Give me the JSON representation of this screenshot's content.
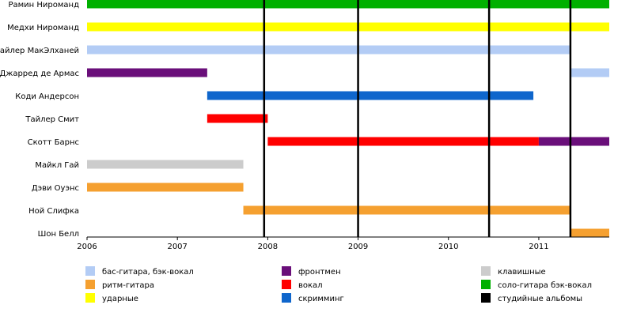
{
  "chart_data": {
    "type": "timeline",
    "x_range": [
      2006.0,
      2011.78
    ],
    "x_ticks": [
      "2006",
      "2007",
      "2008",
      "2009",
      "2010",
      "2011"
    ],
    "members": [
      {
        "name": "Рамин Ниромaнд",
        "bars": [
          {
            "start": 2006.0,
            "end": 2011.78,
            "role": "lead"
          }
        ]
      },
      {
        "name": "Медхи Ниромaнд",
        "bars": [
          {
            "start": 2006.0,
            "end": 2011.78,
            "role": "drums"
          }
        ]
      },
      {
        "name": "Тайлер МакЭлханей",
        "bars": [
          {
            "start": 2006.0,
            "end": 2011.35,
            "role": "bass"
          }
        ]
      },
      {
        "name": "Джарред де Армас",
        "bars": [
          {
            "start": 2006.0,
            "end": 2007.33,
            "role": "front"
          },
          {
            "start": 2011.35,
            "end": 2011.78,
            "role": "bass"
          }
        ]
      },
      {
        "name": "Коди Андерсон",
        "bars": [
          {
            "start": 2007.33,
            "end": 2010.94,
            "role": "scream"
          }
        ]
      },
      {
        "name": "Тайлер Смит",
        "bars": [
          {
            "start": 2007.33,
            "end": 2008.0,
            "role": "vocal"
          }
        ]
      },
      {
        "name": "Скотт Барнс",
        "bars": [
          {
            "start": 2008.0,
            "end": 2011.0,
            "role": "vocal"
          },
          {
            "start": 2011.0,
            "end": 2011.78,
            "role": "front"
          }
        ]
      },
      {
        "name": "Майкл Гай",
        "bars": [
          {
            "start": 2006.0,
            "end": 2007.73,
            "role": "keys"
          }
        ]
      },
      {
        "name": "Дэви Оуэнс",
        "bars": [
          {
            "start": 2006.0,
            "end": 2007.73,
            "role": "rhythm"
          }
        ]
      },
      {
        "name": "Ной Слифка",
        "bars": [
          {
            "start": 2007.73,
            "end": 2011.35,
            "role": "rhythm"
          }
        ]
      },
      {
        "name": "Шон Белл",
        "bars": [
          {
            "start": 2011.35,
            "end": 2011.78,
            "role": "rhythm"
          }
        ]
      }
    ],
    "album_lines": [
      2007.96,
      2009.0,
      2010.45,
      2011.35
    ],
    "roles": {
      "bass": {
        "label": "бас-гитара, бэк-вокал",
        "color": "#b3ccf5"
      },
      "rhythm": {
        "label": "ритм-гитара",
        "color": "#f5a030"
      },
      "drums": {
        "label": "ударные",
        "color": "#ffff00"
      },
      "front": {
        "label": "фронтмен",
        "color": "#6a0f7a"
      },
      "vocal": {
        "label": "вокал",
        "color": "#ff0000"
      },
      "scream": {
        "label": "скримминг",
        "color": "#0f66cc"
      },
      "keys": {
        "label": "клавишные",
        "color": "#cccccc"
      },
      "lead": {
        "label": "соло-гитара бэк-вокал",
        "color": "#00b000"
      },
      "album": {
        "label": "студийные альбомы",
        "color": "#000000"
      }
    },
    "legend": [
      [
        "bass",
        "rhythm",
        "drums"
      ],
      [
        "front",
        "vocal",
        "scream"
      ],
      [
        "keys",
        "lead",
        "album"
      ]
    ]
  }
}
